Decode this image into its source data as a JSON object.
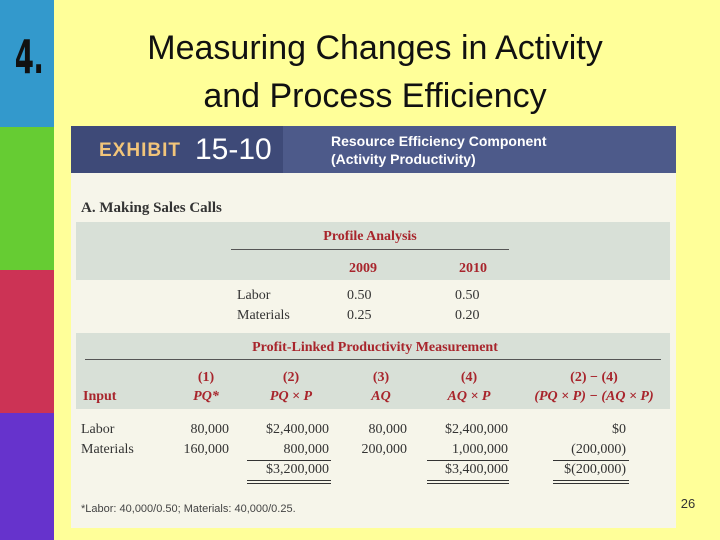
{
  "slide": {
    "number_label": "4.",
    "title_line1": "Measuring Changes in Activity",
    "title_line2": "and Process Efficiency",
    "page_number": "26"
  },
  "exhibit": {
    "label": "EXHIBIT",
    "number": "15-10",
    "caption_line1": "Resource Efficiency Component",
    "caption_line2": "(Activity Productivity)",
    "section_title": "A. Making Sales Calls",
    "profile": {
      "title": "Profile Analysis",
      "col1": "2009",
      "col2": "2010",
      "rows": [
        {
          "label": "Labor",
          "v2009": "0.50",
          "v2010": "0.50"
        },
        {
          "label": "Materials",
          "v2009": "0.25",
          "v2010": "0.20"
        }
      ]
    },
    "plm": {
      "title": "Profit-Linked Productivity Measurement",
      "input_label": "Input",
      "col_nums": [
        "(1)",
        "(2)",
        "(3)",
        "(4)",
        "(2) − (4)"
      ],
      "col_formulas": [
        "PQ*",
        "PQ × P",
        "AQ",
        "AQ × P",
        "(PQ × P) − (AQ × P)"
      ],
      "rows": [
        {
          "label": "Labor",
          "c1": "80,000",
          "c2": "$2,400,000",
          "c3": "80,000",
          "c4": "$2,400,000",
          "c5": "$0"
        },
        {
          "label": "Materials",
          "c1": "160,000",
          "c2": "800,000",
          "c3": "200,000",
          "c4": "1,000,000",
          "c5": "(200,000)"
        }
      ],
      "totals": {
        "c2": "$3,200,000",
        "c4": "$3,400,000",
        "c5": "$(200,000)"
      }
    },
    "footnote": "*Labor: 40,000/0.50; Materials: 40,000/0.25."
  },
  "colors": {
    "strip_blue": "#3399cc",
    "strip_green": "#66cc33",
    "strip_red": "#cc3355",
    "strip_purple": "#6633cc",
    "background": "#ffff99",
    "header_navy": "#4d5a8a",
    "accent_red": "#a8252c"
  }
}
